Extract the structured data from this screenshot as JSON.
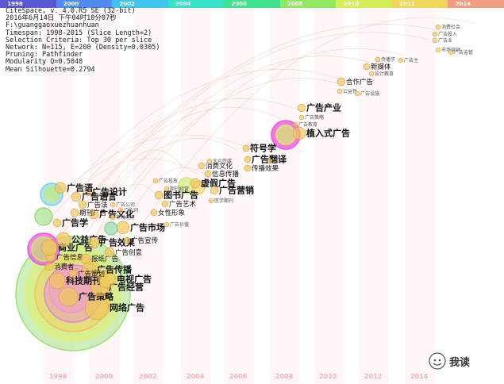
{
  "timeline": {
    "segments": [
      {
        "label": "1998",
        "color": "#5a57d6"
      },
      {
        "label": "2000",
        "color": "#4f8cf0"
      },
      {
        "label": "2002",
        "color": "#3fc5f0"
      },
      {
        "label": "2004",
        "color": "#36e2c8"
      },
      {
        "label": "2006",
        "color": "#41e38c"
      },
      {
        "label": "2008",
        "color": "#8fe860"
      },
      {
        "label": "2010",
        "color": "#d6ee55"
      },
      {
        "label": "2012",
        "color": "#f1d65b"
      },
      {
        "label": "2014",
        "color": "#f39c7f"
      }
    ]
  },
  "info_lines": [
    "CiteSpace, v. 4.0.R5 SE (32-bit)",
    "2016年6月14日 下午04时10分07秒",
    "F:\\guanggaoxuezhuanhuan",
    "Timespan: 1998-2015 (Slice Length=2)",
    "Selection Criteria: Top 30 per slice",
    "Network: N=115, E=200 (Density=0.0305)",
    "Pruning: Pathfinder",
    "Modularity Q=0.5048",
    "Mean Silhouette=0.2794"
  ],
  "bottom_years": [
    "1998",
    "2000",
    "2002",
    "2004",
    "2006",
    "2008",
    "2010",
    "2012",
    "2014"
  ],
  "nodes": [
    {
      "label": "网络广告",
      "size": "big"
    },
    {
      "label": "广告策略",
      "size": "big"
    },
    {
      "label": "广告经营",
      "size": "big"
    },
    {
      "label": "科技期刊",
      "size": "big"
    },
    {
      "label": "电视广告",
      "size": "big"
    },
    {
      "label": "广告传播",
      "size": "big"
    },
    {
      "label": "广告策划",
      "size": "mid"
    },
    {
      "label": "消费者",
      "size": "mid"
    },
    {
      "label": "广告信息",
      "size": "mid"
    },
    {
      "label": "报纸广告",
      "size": "mid"
    },
    {
      "label": "广告创意",
      "size": "mid"
    },
    {
      "label": "商业广告",
      "size": "big"
    },
    {
      "label": "公益广告",
      "size": "big"
    },
    {
      "label": "广告效果",
      "size": "big"
    },
    {
      "label": "广告宣传",
      "size": "mid"
    },
    {
      "label": "广告市场",
      "size": "big"
    },
    {
      "label": "广告学",
      "size": "big"
    },
    {
      "label": "广告文化",
      "size": "big"
    },
    {
      "label": "广告设计",
      "size": "big"
    },
    {
      "label": "广告语",
      "size": "big"
    },
    {
      "label": "广告语言",
      "size": "big"
    },
    {
      "label": "广告法",
      "size": "mid"
    },
    {
      "label": "期刊广告",
      "size": "mid"
    },
    {
      "label": "图书广告",
      "size": "big"
    },
    {
      "label": "广告艺术",
      "size": "mid"
    },
    {
      "label": "女性形象",
      "size": "mid"
    },
    {
      "label": "虚假广告",
      "size": "big"
    },
    {
      "label": "广告营销",
      "size": "big"
    },
    {
      "label": "消费文化",
      "size": "mid"
    },
    {
      "label": "信息传播",
      "size": "mid"
    },
    {
      "label": "符号学",
      "size": "big"
    },
    {
      "label": "广告翻译",
      "size": "big"
    },
    {
      "label": "传播效果",
      "size": "mid"
    },
    {
      "label": "广告产业",
      "size": "big"
    },
    {
      "label": "植入式广告",
      "size": "big"
    },
    {
      "label": "广告教育",
      "size": "small"
    },
    {
      "label": "广告策略",
      "size": "small"
    },
    {
      "label": "合作广告",
      "size": "mid"
    },
    {
      "label": "新媒体",
      "size": "mid"
    },
    {
      "label": "传播学",
      "size": "small"
    },
    {
      "label": "广告主",
      "size": "small"
    },
    {
      "label": "公益性",
      "size": "small"
    },
    {
      "label": "广告设施",
      "size": "small"
    },
    {
      "label": "广告投入",
      "size": "small"
    },
    {
      "label": "消费社会",
      "size": "small"
    },
    {
      "label": "市场营销",
      "size": "small"
    },
    {
      "label": "广告监管",
      "size": "small"
    },
    {
      "label": "广告业",
      "size": "small"
    },
    {
      "label": "广告公司",
      "size": "small"
    },
    {
      "label": "市场经济",
      "size": "small"
    },
    {
      "label": "广告词",
      "size": "small"
    },
    {
      "label": "大众传媒",
      "size": "small"
    },
    {
      "label": "医学期刊",
      "size": "small"
    },
    {
      "label": "广告价值",
      "size": "small"
    },
    {
      "label": "期刊经营",
      "size": "small"
    },
    {
      "label": "广告投放",
      "size": "small"
    },
    {
      "label": "受众",
      "size": "small"
    },
    {
      "label": "设计教育",
      "size": "small"
    }
  ],
  "watermark": {
    "text": "我读",
    "icon": "wechat-icon"
  }
}
